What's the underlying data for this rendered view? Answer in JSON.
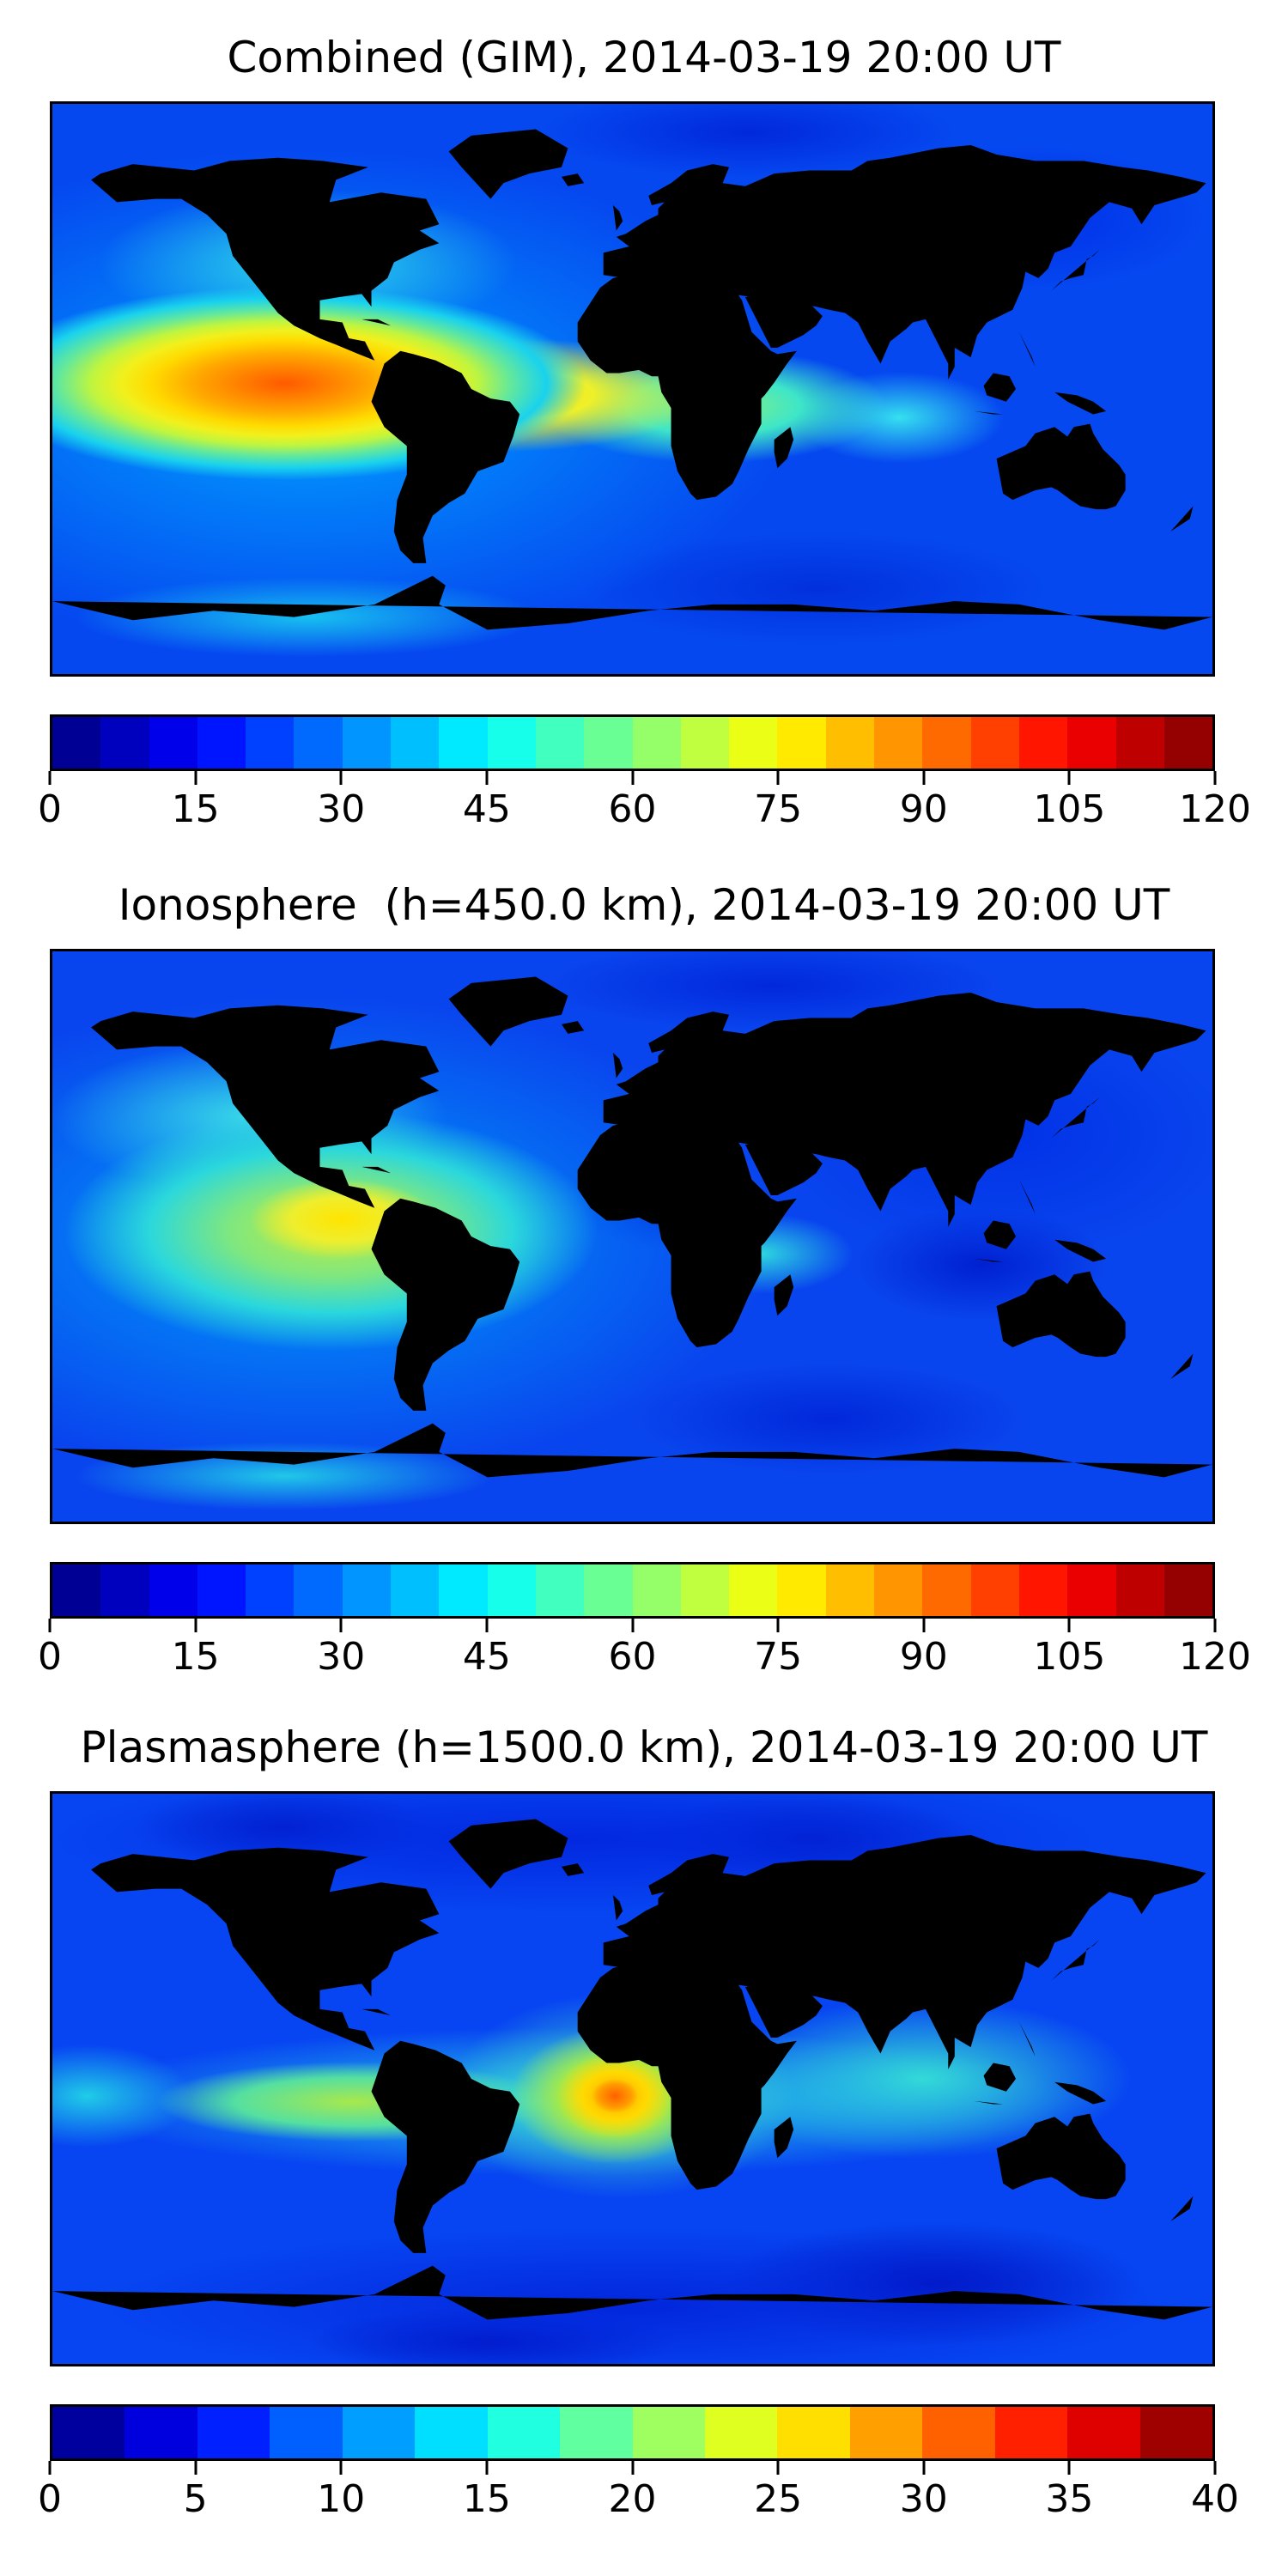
{
  "figure": {
    "kind": "matplotlib-style multi-panel filled-contour world maps",
    "n_panels": 3,
    "background_color": "#ffffff",
    "text_color": "#000000",
    "frame_color": "#000000"
  },
  "chart_data": [
    {
      "type": "heatmap",
      "title": "Combined (GIM), 2014-03-19 20:00 UT",
      "projection": "equirectangular world map",
      "lon_range": [
        -180,
        180
      ],
      "lat_range": [
        -90,
        90
      ],
      "colormap": "jet, discrete filled contour bands",
      "colorbar": {
        "orientation": "horizontal",
        "min": 0,
        "max": 120,
        "tick_step": 15,
        "ticks": [
          0,
          15,
          30,
          45,
          60,
          75,
          90,
          105,
          120
        ],
        "n_segments": 24,
        "segment_colors": [
          "#000095",
          "#0000BF",
          "#0000EA",
          "#0015FF",
          "#0040FF",
          "#006AFF",
          "#0095FF",
          "#00BFFF",
          "#00EAFF",
          "#15FFEA",
          "#40FFBF",
          "#6AFF95",
          "#95FF6A",
          "#BFFF40",
          "#EAFF15",
          "#FFEA00",
          "#FFBF00",
          "#FF9500",
          "#FF6A00",
          "#FF4000",
          "#FF1500",
          "#EA0000",
          "#BF0000",
          "#950000"
        ]
      },
      "peak": {
        "value_est": 105,
        "lon_est": -85,
        "lat_est": -10,
        "region": "eastern equatorial Pacific / Peru / western Brazil"
      },
      "low": {
        "value_est": 10,
        "region": "northern Asia, Arctic and southern Indian Ocean"
      },
      "description": "Large high-TEC cell (orange/red, 90-105) centered just west of South America, with a yellow band (60-85) over South America and the tropical Atlantic, green-cyan (40-55) across equatorial Africa, a cyan bump (35-45) over India, and low blue values (10-25) over Europe, Asia and high latitudes.",
      "render": {
        "base_color": "#0548F0",
        "field_layers": [
          {
            "x": 20,
            "y": 49,
            "rx": 26,
            "ry": 17,
            "stops": [
              [
                "#FF5A00",
                0
              ],
              [
                "#FF8000",
                15
              ],
              [
                "#FFA900",
                30
              ],
              [
                "#FFDA00",
                44
              ],
              [
                "#F2F01C",
                54
              ],
              [
                "#BFF53F",
                64
              ],
              [
                "#63E89C",
                75
              ],
              [
                "#19D2EE",
                87
              ],
              [
                "rgba(0,160,255,0)",
                100
              ]
            ]
          },
          {
            "x": 39,
            "y": 51,
            "rx": 17,
            "ry": 10,
            "stops": [
              [
                "#FFD800",
                0
              ],
              [
                "#EEF02A",
                45
              ],
              [
                "rgba(180,240,80,0)",
                100
              ]
            ]
          },
          {
            "x": 57,
            "y": 53,
            "rx": 15,
            "ry": 10,
            "stops": [
              [
                "#90F078",
                0
              ],
              [
                "#3EE6C8",
                50
              ],
              [
                "rgba(0,210,255,0)",
                100
              ]
            ]
          },
          {
            "x": 73,
            "y": 55,
            "rx": 9,
            "ry": 8,
            "stops": [
              [
                "#35E0F0",
                0
              ],
              [
                "rgba(0,190,255,0)",
                100
              ]
            ]
          },
          {
            "x": 22,
            "y": 28,
            "rx": 18,
            "ry": 13,
            "stops": [
              [
                "#2FD8E8",
                0
              ],
              [
                "rgba(0,170,255,0)",
                100
              ]
            ]
          },
          {
            "x": 22,
            "y": 90,
            "rx": 20,
            "ry": 7,
            "stops": [
              [
                "#18C0F0",
                0
              ],
              [
                "rgba(0,170,255,0)",
                100
              ]
            ]
          },
          {
            "x": 22,
            "y": 52,
            "rx": 42,
            "ry": 44,
            "stops": [
              [
                "#00A2FF",
                0
              ],
              [
                "rgba(0,130,255,0)",
                100
              ]
            ]
          },
          {
            "x": 84,
            "y": 20,
            "rx": 16,
            "ry": 13,
            "stops": [
              [
                "#0030E8",
                0
              ],
              [
                "rgba(0,48,232,0)",
                100
              ]
            ]
          },
          {
            "x": 60,
            "y": 5,
            "rx": 18,
            "ry": 8,
            "stops": [
              [
                "#0128DC",
                0
              ],
              [
                "rgba(1,40,220,0)",
                100
              ]
            ]
          },
          {
            "x": 66,
            "y": 85,
            "rx": 20,
            "ry": 10,
            "stops": [
              [
                "#0130DC",
                0
              ],
              [
                "rgba(1,48,220,0)",
                100
              ]
            ]
          }
        ]
      }
    },
    {
      "type": "heatmap",
      "title": "Ionosphere  (h=450.0 km), 2014-03-19 20:00 UT",
      "projection": "equirectangular world map",
      "lon_range": [
        -180,
        180
      ],
      "lat_range": [
        -90,
        90
      ],
      "colormap": "jet, discrete filled contour bands",
      "colorbar": {
        "orientation": "horizontal",
        "min": 0,
        "max": 120,
        "tick_step": 15,
        "ticks": [
          0,
          15,
          30,
          45,
          60,
          75,
          90,
          105,
          120
        ],
        "n_segments": 24,
        "segment_colors": [
          "#000095",
          "#0000BF",
          "#0000EA",
          "#0015FF",
          "#0040FF",
          "#006AFF",
          "#0095FF",
          "#00BFFF",
          "#00EAFF",
          "#15FFEA",
          "#40FFBF",
          "#6AFF95",
          "#95FF6A",
          "#BFFF40",
          "#EAFF15",
          "#FFEA00",
          "#FFBF00",
          "#FF9500",
          "#FF6A00",
          "#FF4000",
          "#FF1500",
          "#EA0000",
          "#BF0000",
          "#950000"
        ]
      },
      "peak": {
        "value_est": 75,
        "lon_est": -85,
        "lat_est": -5,
        "region": "eastern Pacific off Ecuador/Peru"
      },
      "low": {
        "value_est": 8,
        "region": "east Asia, southeast Asia and southern Indian Ocean"
      },
      "description": "Broad yellow-green maximum (55-75) over the eastern Pacific and South America, cyan tongue (35-45) toward western North America, a small dark-blue low over West Africa, a cyan spot (35-40) over East Africa, and dark blue (8-20) over Europe, Asia and the southern Indian Ocean.",
      "render": {
        "base_color": "#0945EE",
        "field_layers": [
          {
            "x": 25,
            "y": 47,
            "rx": 8,
            "ry": 7,
            "stops": [
              [
                "#FFE400",
                0
              ],
              [
                "#EEEE2E",
                55
              ],
              [
                "rgba(200,240,60,0)",
                100
              ]
            ]
          },
          {
            "x": 24,
            "y": 49,
            "rx": 23,
            "ry": 21,
            "stops": [
              [
                "#C0EC40",
                0
              ],
              [
                "#7FE77F",
                38
              ],
              [
                "#2BD8DC",
                68
              ],
              [
                "rgba(0,180,250,0)",
                100
              ]
            ]
          },
          {
            "x": 17,
            "y": 29,
            "rx": 17,
            "ry": 13,
            "stops": [
              [
                "#38D8E8",
                0
              ],
              [
                "rgba(0,170,250,0)",
                100
              ]
            ]
          },
          {
            "x": 61,
            "y": 53,
            "rx": 8,
            "ry": 7,
            "stops": [
              [
                "#2ED8E0",
                0
              ],
              [
                "rgba(0,190,240,0)",
                100
              ]
            ]
          },
          {
            "x": 20,
            "y": 92,
            "rx": 18,
            "ry": 6,
            "stops": [
              [
                "#20C8E8",
                0
              ],
              [
                "rgba(0,170,250,0)",
                100
              ]
            ]
          },
          {
            "x": 22,
            "y": 50,
            "rx": 40,
            "ry": 42,
            "stops": [
              [
                "#009CFA",
                0
              ],
              [
                "rgba(0,120,250,0)",
                100
              ]
            ]
          },
          {
            "x": 52,
            "y": 44,
            "rx": 7,
            "ry": 8,
            "stops": [
              [
                "#0026E0",
                0
              ],
              [
                "rgba(0,38,224,0)",
                100
              ]
            ]
          },
          {
            "x": 82,
            "y": 32,
            "rx": 20,
            "ry": 22,
            "stops": [
              [
                "#0132E6",
                0
              ],
              [
                "rgba(1,50,230,0)",
                100
              ]
            ]
          },
          {
            "x": 80,
            "y": 55,
            "rx": 11,
            "ry": 10,
            "stops": [
              [
                "#0020D0",
                0
              ],
              [
                "rgba(0,32,208,0)",
                100
              ]
            ]
          },
          {
            "x": 67,
            "y": 82,
            "rx": 17,
            "ry": 10,
            "stops": [
              [
                "#0128DA",
                0
              ],
              [
                "rgba(1,40,218,0)",
                100
              ]
            ]
          },
          {
            "x": 62,
            "y": 6,
            "rx": 20,
            "ry": 8,
            "stops": [
              [
                "#0128DC",
                0
              ],
              [
                "rgba(1,40,220,0)",
                100
              ]
            ]
          }
        ]
      }
    },
    {
      "type": "heatmap",
      "title": "Plasmasphere (h=1500.0 km), 2014-03-19 20:00 UT",
      "projection": "equirectangular world map",
      "lon_range": [
        -180,
        180
      ],
      "lat_range": [
        -90,
        90
      ],
      "colormap": "jet, discrete filled contour bands",
      "colorbar": {
        "orientation": "horizontal",
        "min": 0,
        "max": 40,
        "tick_step": 5,
        "ticks": [
          0,
          5,
          10,
          15,
          20,
          25,
          30,
          35,
          40
        ],
        "n_segments": 16,
        "segment_colors": [
          "#00009F",
          "#0000DF",
          "#0020FF",
          "#0060FF",
          "#009FFF",
          "#00DFFF",
          "#20FFDF",
          "#60FF9F",
          "#9FFF60",
          "#DFFF20",
          "#FFDF00",
          "#FF9F00",
          "#FF6000",
          "#FF2000",
          "#DF0000",
          "#9F0000"
        ]
      },
      "peak": {
        "value_est": 30,
        "lon_est": 7,
        "lat_est": 0,
        "region": "Gulf of Guinea / west-central Africa"
      },
      "low": {
        "value_est": 3,
        "region": "Arctic and Antarctic latitudes"
      },
      "description": "Compact orange maximum (27-30) over the Gulf of Guinea surrounded by yellow and green rings, a cyan equatorial band (13-18) circling the globe with a yellow-green stretch over South America and the eastern Pacific, cyan over south Asia and the western Pacific, and dark blue (2-8) poleward bands.",
      "render": {
        "base_color": "#0745F2",
        "field_layers": [
          {
            "x": 48.5,
            "y": 53,
            "rx": 2,
            "ry": 3,
            "stops": [
              [
                "#FF6000",
                0
              ],
              [
                "#FF9800",
                65
              ],
              [
                "rgba(255,150,0,0)",
                100
              ]
            ]
          },
          {
            "x": 48.5,
            "y": 53,
            "rx": 5,
            "ry": 7.5,
            "stops": [
              [
                "#FFA800",
                0
              ],
              [
                "#FFD900",
                55
              ],
              [
                "rgba(255,225,0,0)",
                100
              ]
            ]
          },
          {
            "x": 48.5,
            "y": 53,
            "rx": 9,
            "ry": 12,
            "stops": [
              [
                "#E9F428",
                0
              ],
              [
                "#9FE84F",
                55
              ],
              [
                "rgba(110,230,120,0)",
                100
              ]
            ]
          },
          {
            "x": 49,
            "y": 53,
            "rx": 15,
            "ry": 18,
            "stops": [
              [
                "#45E2C8",
                0
              ],
              [
                "rgba(0,200,240,0)",
                100
              ]
            ]
          },
          {
            "x": 26,
            "y": 54,
            "rx": 17,
            "ry": 7,
            "stops": [
              [
                "#A8E84C",
                0
              ],
              [
                "#55E0A0",
                60
              ],
              [
                "rgba(0,200,230,0)",
                100
              ]
            ]
          },
          {
            "x": 45,
            "y": 54,
            "rx": 43,
            "ry": 13,
            "stops": [
              [
                "#2BD4E4",
                0
              ],
              [
                "rgba(0,180,245,0)",
                100
              ]
            ]
          },
          {
            "x": 75,
            "y": 50,
            "rx": 18,
            "ry": 14,
            "stops": [
              [
                "#35DCD4",
                0
              ],
              [
                "rgba(0,190,230,0)",
                100
              ]
            ]
          },
          {
            "x": 3,
            "y": 53,
            "rx": 9,
            "ry": 9,
            "stops": [
              [
                "#20CCE8",
                0
              ],
              [
                "rgba(0,180,235,0)",
                100
              ]
            ]
          },
          {
            "x": 45,
            "y": 8,
            "rx": 46,
            "ry": 13,
            "stops": [
              [
                "#0228E0",
                0
              ],
              [
                "rgba(2,40,224,0)",
                100
              ]
            ]
          },
          {
            "x": 20,
            "y": 6,
            "rx": 13,
            "ry": 7,
            "stops": [
              [
                "#011CC8",
                0
              ],
              [
                "rgba(1,28,200,0)",
                100
              ]
            ]
          },
          {
            "x": 65,
            "y": 8,
            "rx": 15,
            "ry": 8,
            "stops": [
              [
                "#011CC8",
                0
              ],
              [
                "rgba(1,28,200,0)",
                100
              ]
            ]
          },
          {
            "x": 50,
            "y": 90,
            "rx": 46,
            "ry": 14,
            "stops": [
              [
                "#0226DC",
                0
              ],
              [
                "rgba(2,38,220,0)",
                100
              ]
            ]
          },
          {
            "x": 76,
            "y": 86,
            "rx": 18,
            "ry": 11,
            "stops": [
              [
                "#0114C0",
                0
              ],
              [
                "rgba(1,20,192,0)",
                100
              ]
            ]
          },
          {
            "x": 38,
            "y": 96,
            "rx": 16,
            "ry": 6,
            "stops": [
              [
                "#0114C0",
                0
              ],
              [
                "rgba(1,20,192,0)",
                100
              ]
            ]
          }
        ]
      }
    }
  ]
}
